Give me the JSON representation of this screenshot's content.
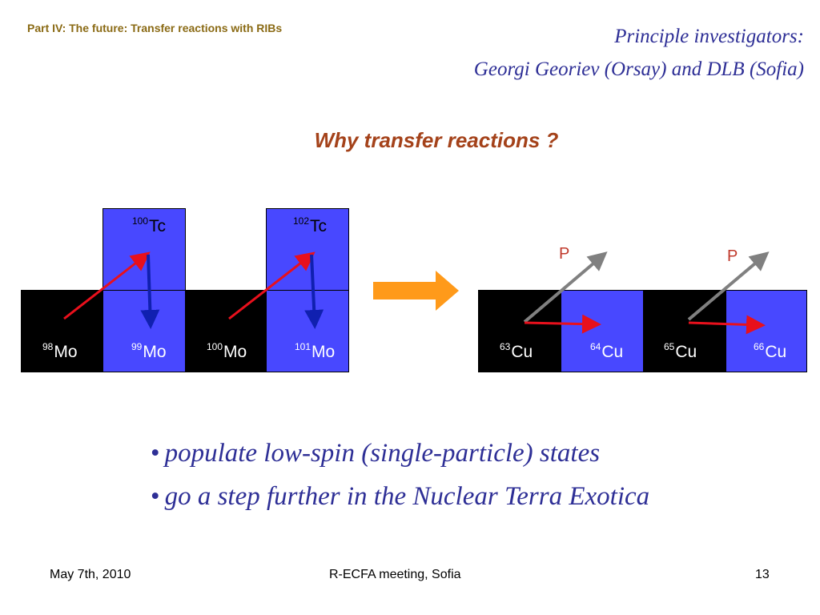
{
  "header": {
    "part_title": "Part IV: The future: Transfer reactions with RIBs",
    "pi_line1": "Principle investigators:",
    "pi_line2": "Georgi Georiev (Orsay) and DLB (Sofia)"
  },
  "heading": "Why transfer reactions ?",
  "left_chart": {
    "top_nuclei": [
      {
        "mass": "100",
        "symbol": "Tc"
      },
      {
        "mass": "102",
        "symbol": "Tc"
      }
    ],
    "bottom_nuclei": [
      {
        "mass": "98",
        "symbol": "Mo"
      },
      {
        "mass": "99",
        "symbol": "Mo"
      },
      {
        "mass": "100",
        "symbol": "Mo"
      },
      {
        "mass": "101",
        "symbol": "Mo"
      }
    ]
  },
  "right_chart": {
    "nuclei": [
      {
        "mass": "63",
        "symbol": "Cu"
      },
      {
        "mass": "64",
        "symbol": "Cu"
      },
      {
        "mass": "65",
        "symbol": "Cu"
      },
      {
        "mass": "66",
        "symbol": "Cu"
      }
    ],
    "particle_labels": [
      "P",
      "P"
    ]
  },
  "colors": {
    "blue_cell": "#4848ff",
    "red_arrow": "#e8101c",
    "blue_arrow": "#1020b0",
    "grey_arrow": "#808080",
    "orange_arrow": "#ff9a1a"
  },
  "bullets": [
    "populate low-spin (single-particle) states",
    "go a step further in the Nuclear Terra Exotica"
  ],
  "footer": {
    "date": "May 7th, 2010",
    "meeting": "R-ECFA meeting, Sofia",
    "page": "13"
  }
}
